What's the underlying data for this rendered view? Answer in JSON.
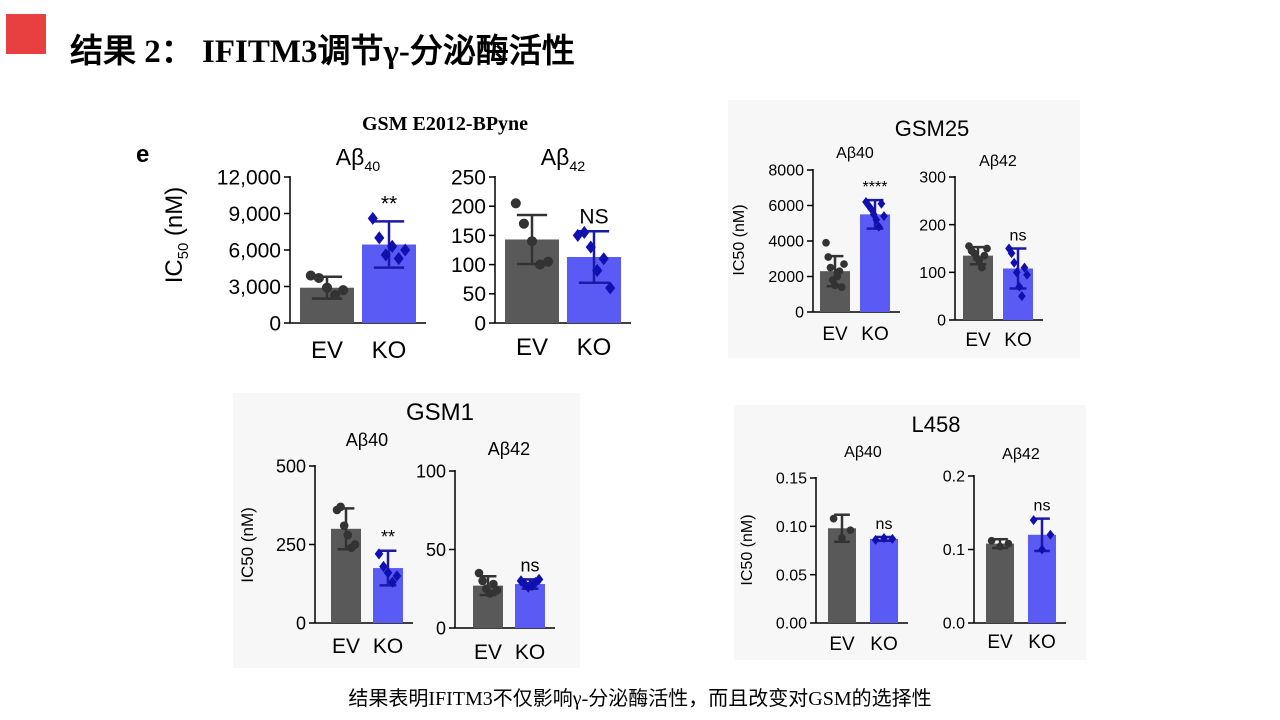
{
  "slide": {
    "title": "结果 2： IFITM3调节γ-分泌酶活性",
    "caption": "结果表明IFITM3不仅影响γ-分泌酶活性，而且改变对GSM的选择性",
    "accent_color": "#e84040"
  },
  "chart_data": [
    {
      "id": "gsm-e2012",
      "type": "bar",
      "title": "GSM E2012-BPyne",
      "panel_label": "e",
      "ylabel": "IC50 (nM)",
      "ylabel_parts": {
        "prefix": "IC",
        "sub": "50",
        "suffix": " (nM)"
      },
      "categories": [
        "EV",
        "KO"
      ],
      "colors": [
        "#595959",
        "#5a5af5"
      ],
      "subplots": [
        {
          "title_prefix": "Aβ",
          "title_sub": "40",
          "ylim": [
            0,
            12000
          ],
          "ticks": [
            0,
            3000,
            6000,
            9000,
            12000
          ],
          "tick_labels": [
            "0",
            "3,000",
            "6,000",
            "9,000",
            "12,000"
          ],
          "values": [
            2900,
            6450
          ],
          "err": [
            900,
            1900
          ],
          "sig": "**",
          "points": [
            [
              3900,
              3700,
              2900,
              2300,
              2700
            ],
            [
              8600,
              7000,
              5600,
              6300,
              5300,
              6000
            ]
          ]
        },
        {
          "title_prefix": "Aβ",
          "title_sub": "42",
          "ylim": [
            0,
            250
          ],
          "ticks": [
            0,
            50,
            100,
            150,
            200,
            250
          ],
          "tick_labels": [
            "0",
            "50",
            "100",
            "150",
            "200",
            "250"
          ],
          "values": [
            143,
            113
          ],
          "err": [
            42,
            44
          ],
          "sig": "NS",
          "points": [
            [
              205,
              170,
              140,
              100,
              105
            ],
            [
              150,
              155,
              130,
              90,
              110,
              60
            ]
          ]
        }
      ]
    },
    {
      "id": "gsm25",
      "type": "bar",
      "title": "GSM25",
      "ylabel": "IC50 (nM)",
      "categories": [
        "EV",
        "KO"
      ],
      "colors": [
        "#595959",
        "#5a5af5"
      ],
      "subplots": [
        {
          "title": "Aβ40",
          "ylim": [
            0,
            8000
          ],
          "ticks": [
            0,
            2000,
            4000,
            6000,
            8000
          ],
          "tick_labels": [
            "0",
            "2000",
            "4000",
            "6000",
            "8000"
          ],
          "values": [
            2300,
            5500
          ],
          "err": [
            850,
            800
          ],
          "sig": "****",
          "points": [
            [
              3900,
              3100,
              2500,
              1800,
              1500,
              2000,
              2300,
              1400,
              2700
            ],
            [
              6200,
              6000,
              5800,
              5500,
              5200,
              4800,
              6100,
              5400
            ]
          ]
        },
        {
          "title": "Aβ42",
          "ylim": [
            0,
            300
          ],
          "ticks": [
            0,
            100,
            200,
            300
          ],
          "tick_labels": [
            "0",
            "100",
            "200",
            "300"
          ],
          "values": [
            135,
            108
          ],
          "err": [
            18,
            42
          ],
          "sig": "ns",
          "points": [
            [
              155,
              145,
              140,
              130,
              125,
              110,
              135,
              150
            ],
            [
              150,
              140,
              120,
              100,
              70,
              50,
              110,
              95
            ]
          ]
        }
      ]
    },
    {
      "id": "gsm1",
      "type": "bar",
      "title": "GSM1",
      "ylabel": "IC50 (nM)",
      "categories": [
        "EV",
        "KO"
      ],
      "colors": [
        "#595959",
        "#5a5af5"
      ],
      "subplots": [
        {
          "title": "Aβ40",
          "ylim": [
            0,
            500
          ],
          "ticks": [
            0,
            250,
            500
          ],
          "tick_labels": [
            "0",
            "250",
            "500"
          ],
          "values": [
            300,
            175
          ],
          "err": [
            65,
            55
          ],
          "sig": "**",
          "points": [
            [
              360,
              370,
              310,
              280,
              240,
              250
            ],
            [
              220,
              180,
              160,
              130,
              150
            ]
          ]
        },
        {
          "title": "Aβ42",
          "ylim": [
            0,
            100
          ],
          "ticks": [
            0,
            50,
            100
          ],
          "tick_labels": [
            "0",
            "50",
            "100"
          ],
          "values": [
            27,
            28
          ],
          "err": [
            6,
            3
          ],
          "sig": "ns",
          "points": [
            [
              35,
              30,
              25,
              22,
              28,
              24
            ],
            [
              30,
              28,
              26,
              27,
              29,
              31
            ]
          ]
        }
      ]
    },
    {
      "id": "l458",
      "type": "bar",
      "title": "L458",
      "ylabel": "IC50 (nM)",
      "categories": [
        "EV",
        "KO"
      ],
      "colors": [
        "#595959",
        "#5a5af5"
      ],
      "subplots": [
        {
          "title": "Aβ40",
          "ylim": [
            0,
            0.15
          ],
          "ticks": [
            0,
            0.05,
            0.1,
            0.15
          ],
          "tick_labels": [
            "0.00",
            "0.05",
            "0.10",
            "0.15"
          ],
          "values": [
            0.098,
            0.087
          ],
          "err": [
            0.014,
            0.002
          ],
          "sig": "ns",
          "points": [
            [
              0.108,
              0.088,
              0.096
            ],
            [
              0.086,
              0.088,
              0.087
            ]
          ]
        },
        {
          "title": "Aβ42",
          "ylim": [
            0,
            0.2
          ],
          "ticks": [
            0,
            0.1,
            0.2
          ],
          "tick_labels": [
            "0.0",
            "0.1",
            "0.2"
          ],
          "values": [
            0.108,
            0.12
          ],
          "err": [
            0.006,
            0.022
          ],
          "sig": "ns",
          "points": [
            [
              0.112,
              0.104,
              0.108
            ],
            [
              0.14,
              0.1,
              0.12
            ]
          ]
        }
      ]
    }
  ]
}
